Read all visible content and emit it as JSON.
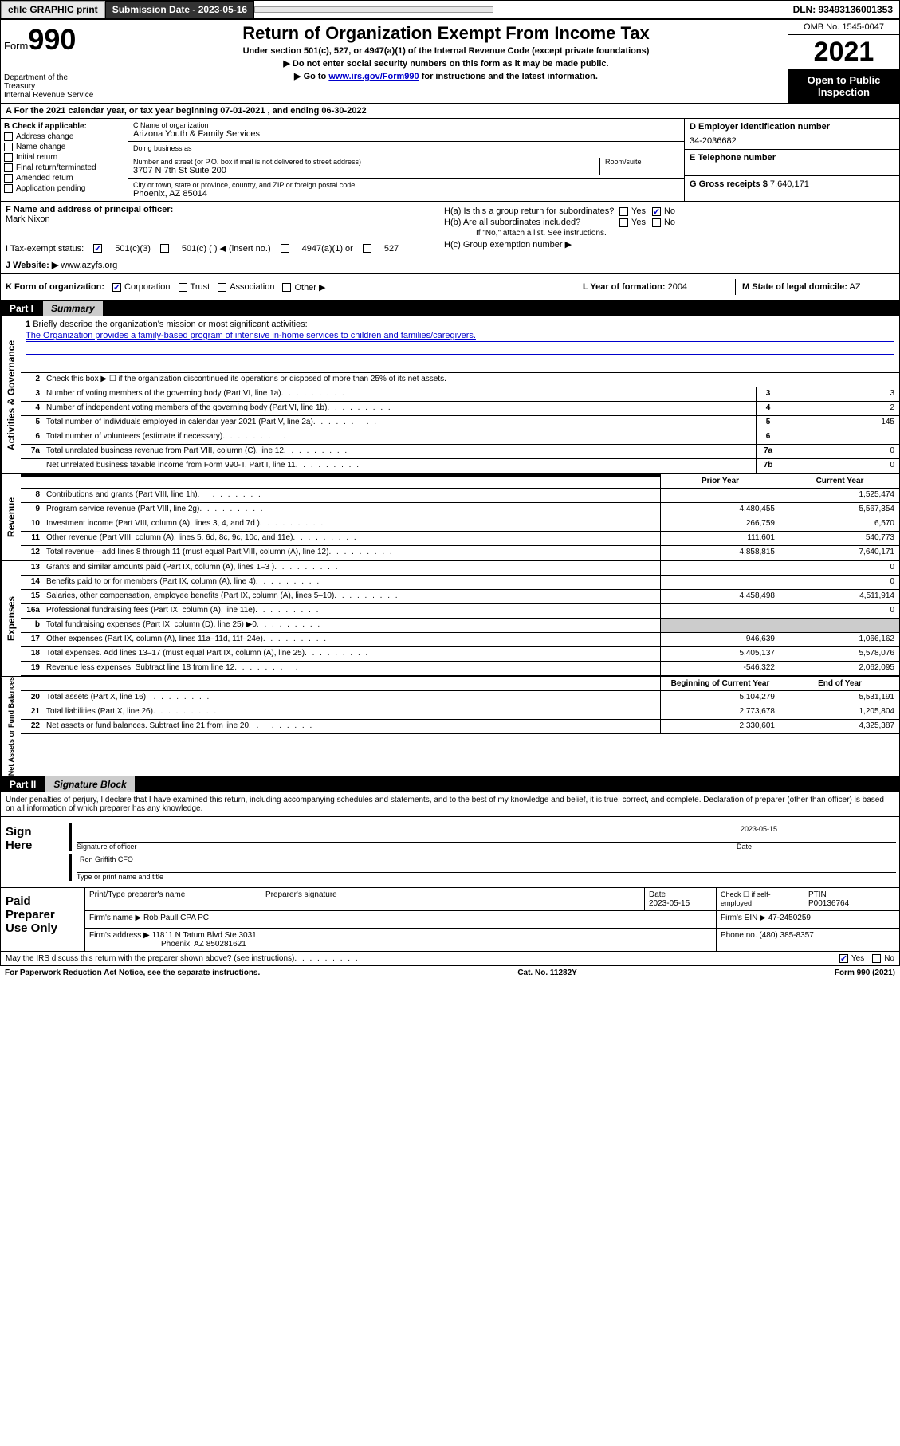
{
  "topbar": {
    "efile": "efile GRAPHIC print",
    "submission": "Submission Date - 2023-05-16",
    "dln": "DLN: 93493136001353"
  },
  "header": {
    "form_label": "Form",
    "form_num": "990",
    "title": "Return of Organization Exempt From Income Tax",
    "sub1": "Under section 501(c), 527, or 4947(a)(1) of the Internal Revenue Code (except private foundations)",
    "sub2": "▶ Do not enter social security numbers on this form as it may be made public.",
    "sub3_pre": "▶ Go to ",
    "sub3_link": "www.irs.gov/Form990",
    "sub3_post": " for instructions and the latest information.",
    "dept": "Department of the Treasury\nInternal Revenue Service",
    "omb": "OMB No. 1545-0047",
    "year": "2021",
    "open": "Open to Public Inspection"
  },
  "row_a": "A For the 2021 calendar year, or tax year beginning 07-01-2021   , and ending 06-30-2022",
  "sec_b": {
    "title": "B Check if applicable:",
    "opts": [
      "Address change",
      "Name change",
      "Initial return",
      "Final return/terminated",
      "Amended return",
      "Application pending"
    ]
  },
  "sec_c": {
    "name_label": "C Name of organization",
    "name": "Arizona Youth & Family Services",
    "dba_label": "Doing business as",
    "dba": "",
    "addr_label": "Number and street (or P.O. box if mail is not delivered to street address)",
    "room_label": "Room/suite",
    "addr": "3707 N 7th St Suite 200",
    "city_label": "City or town, state or province, country, and ZIP or foreign postal code",
    "city": "Phoenix, AZ  85014"
  },
  "sec_d": {
    "label": "D Employer identification number",
    "val": "34-2036682"
  },
  "sec_e": {
    "label": "E Telephone number",
    "val": ""
  },
  "sec_g": {
    "label": "G Gross receipts $",
    "val": "7,640,171"
  },
  "sec_f": {
    "label": "F Name and address of principal officer:",
    "name": "Mark Nixon"
  },
  "sec_h": {
    "a": "H(a)  Is this a group return for subordinates?",
    "b": "H(b)  Are all subordinates included?",
    "b_note": "If \"No,\" attach a list. See instructions.",
    "c": "H(c)  Group exemption number ▶"
  },
  "row_i": {
    "label": "I     Tax-exempt status:",
    "c501c3": "501(c)(3)",
    "c501c": "501(c) (  ) ◀ (insert no.)",
    "c4947": "4947(a)(1) or",
    "c527": "527"
  },
  "row_j": {
    "label": "J    Website: ▶",
    "val": "www.azyfs.org"
  },
  "row_k": {
    "label": "K Form of organization:",
    "corp": "Corporation",
    "trust": "Trust",
    "assoc": "Association",
    "other": "Other ▶",
    "l_label": "L Year of formation:",
    "l_val": "2004",
    "m_label": "M State of legal domicile:",
    "m_val": "AZ"
  },
  "part1": {
    "label": "Part I",
    "title": "Summary"
  },
  "gov": {
    "vert": "Activities & Governance",
    "line1": "Briefly describe the organization's mission or most significant activities:",
    "mission": "The Organization provides a family-based program of intensive in-home services to children and families/caregivers.",
    "line2": "Check this box ▶ ☐  if the organization discontinued its operations or disposed of more than 25% of its net assets.",
    "rows": [
      {
        "n": "3",
        "d": "Number of voting members of the governing body (Part VI, line 1a)",
        "box": "3",
        "v": "3"
      },
      {
        "n": "4",
        "d": "Number of independent voting members of the governing body (Part VI, line 1b)",
        "box": "4",
        "v": "2"
      },
      {
        "n": "5",
        "d": "Total number of individuals employed in calendar year 2021 (Part V, line 2a)",
        "box": "5",
        "v": "145"
      },
      {
        "n": "6",
        "d": "Total number of volunteers (estimate if necessary)",
        "box": "6",
        "v": ""
      },
      {
        "n": "7a",
        "d": "Total unrelated business revenue from Part VIII, column (C), line 12",
        "box": "7a",
        "v": "0"
      },
      {
        "n": "",
        "d": "Net unrelated business taxable income from Form 990-T, Part I, line 11",
        "box": "7b",
        "v": "0"
      }
    ]
  },
  "rev": {
    "vert": "Revenue",
    "head_prior": "Prior Year",
    "head_curr": "Current Year",
    "rows": [
      {
        "n": "8",
        "d": "Contributions and grants (Part VIII, line 1h)",
        "p": "",
        "c": "1,525,474"
      },
      {
        "n": "9",
        "d": "Program service revenue (Part VIII, line 2g)",
        "p": "4,480,455",
        "c": "5,567,354"
      },
      {
        "n": "10",
        "d": "Investment income (Part VIII, column (A), lines 3, 4, and 7d )",
        "p": "266,759",
        "c": "6,570"
      },
      {
        "n": "11",
        "d": "Other revenue (Part VIII, column (A), lines 5, 6d, 8c, 9c, 10c, and 11e)",
        "p": "111,601",
        "c": "540,773"
      },
      {
        "n": "12",
        "d": "Total revenue—add lines 8 through 11 (must equal Part VIII, column (A), line 12)",
        "p": "4,858,815",
        "c": "7,640,171"
      }
    ]
  },
  "exp": {
    "vert": "Expenses",
    "rows": [
      {
        "n": "13",
        "d": "Grants and similar amounts paid (Part IX, column (A), lines 1–3 )",
        "p": "",
        "c": "0"
      },
      {
        "n": "14",
        "d": "Benefits paid to or for members (Part IX, column (A), line 4)",
        "p": "",
        "c": "0"
      },
      {
        "n": "15",
        "d": "Salaries, other compensation, employee benefits (Part IX, column (A), lines 5–10)",
        "p": "4,458,498",
        "c": "4,511,914"
      },
      {
        "n": "16a",
        "d": "Professional fundraising fees (Part IX, column (A), line 11e)",
        "p": "",
        "c": "0"
      },
      {
        "n": "b",
        "d": "Total fundraising expenses (Part IX, column (D), line 25) ▶0",
        "p": "SHADE",
        "c": "SHADE"
      },
      {
        "n": "17",
        "d": "Other expenses (Part IX, column (A), lines 11a–11d, 11f–24e)",
        "p": "946,639",
        "c": "1,066,162"
      },
      {
        "n": "18",
        "d": "Total expenses. Add lines 13–17 (must equal Part IX, column (A), line 25)",
        "p": "5,405,137",
        "c": "5,578,076"
      },
      {
        "n": "19",
        "d": "Revenue less expenses. Subtract line 18 from line 12",
        "p": "-546,322",
        "c": "2,062,095"
      }
    ]
  },
  "net": {
    "vert": "Net Assets or Fund Balances",
    "head_begin": "Beginning of Current Year",
    "head_end": "End of Year",
    "rows": [
      {
        "n": "20",
        "d": "Total assets (Part X, line 16)",
        "p": "5,104,279",
        "c": "5,531,191"
      },
      {
        "n": "21",
        "d": "Total liabilities (Part X, line 26)",
        "p": "2,773,678",
        "c": "1,205,804"
      },
      {
        "n": "22",
        "d": "Net assets or fund balances. Subtract line 21 from line 20",
        "p": "2,330,601",
        "c": "4,325,387"
      }
    ]
  },
  "part2": {
    "label": "Part II",
    "title": "Signature Block",
    "decl": "Under penalties of perjury, I declare that I have examined this return, including accompanying schedules and statements, and to the best of my knowledge and belief, it is true, correct, and complete. Declaration of preparer (other than officer) is based on all information of which preparer has any knowledge."
  },
  "sign": {
    "here": "Sign Here",
    "sig_label": "Signature of officer",
    "date": "2023-05-15",
    "date_label": "Date",
    "name": "Ron Griffith CFO",
    "name_label": "Type or print name and title"
  },
  "paid": {
    "label": "Paid Preparer Use Only",
    "h_prep": "Print/Type preparer's name",
    "h_sig": "Preparer's signature",
    "h_date": "Date",
    "date_val": "2023-05-15",
    "h_check": "Check ☐ if self-employed",
    "h_ptin": "PTIN",
    "ptin": "P00136764",
    "firm_name_label": "Firm's name     ▶",
    "firm_name": "Rob Paull CPA PC",
    "firm_ein_label": "Firm's EIN ▶",
    "firm_ein": "47-2450259",
    "firm_addr_label": "Firm's address ▶",
    "firm_addr": "11811 N Tatum Blvd Ste 3031",
    "firm_city": "Phoenix, AZ  850281621",
    "phone_label": "Phone no.",
    "phone": "(480) 385-8357"
  },
  "footer": {
    "discuss": "May the IRS discuss this return with the preparer shown above? (see instructions)",
    "yes": "Yes",
    "no": "No",
    "paperwork": "For Paperwork Reduction Act Notice, see the separate instructions.",
    "cat": "Cat. No. 11282Y",
    "form": "Form 990 (2021)"
  }
}
